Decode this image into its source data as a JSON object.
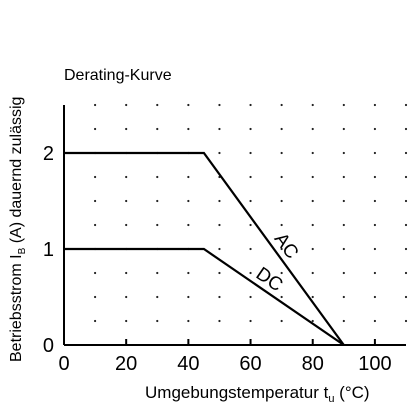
{
  "chart_data": {
    "type": "line",
    "title": "Derating-Kurve",
    "xlabel": {
      "text": "Umgebungstemperatur t",
      "subscript": "u",
      "unit": " (°C)"
    },
    "ylabel": {
      "text": "Betriebsstrom I",
      "subscript": "B",
      "rest": " (A) dauernd zulässig"
    },
    "xlim": [
      0,
      110
    ],
    "ylim": [
      0,
      2.5
    ],
    "xticks": [
      0,
      20,
      40,
      60,
      80,
      100
    ],
    "yticks": [
      0,
      1,
      2
    ],
    "grid": "dotted",
    "series": [
      {
        "name": "AC",
        "x": [
          0,
          45,
          90
        ],
        "y": [
          2,
          2,
          0
        ]
      },
      {
        "name": "DC",
        "x": [
          0,
          45,
          90
        ],
        "y": [
          1,
          1,
          0
        ]
      }
    ],
    "tail": {
      "x": [
        90,
        110
      ],
      "y": [
        0,
        0
      ]
    }
  }
}
